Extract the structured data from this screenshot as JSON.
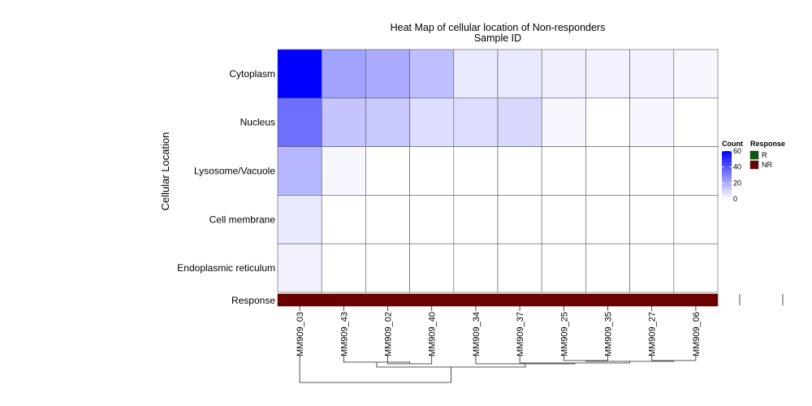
{
  "chart_data": {
    "type": "heatmap",
    "title": "Heat Map of cellular location of Non-responders",
    "subtitle": "Sample ID",
    "ylabel": "Cellular Location",
    "rows": [
      "Cytoplasm",
      "Nucleus",
      "Lysosome/Vacuole",
      "Cell membrane",
      "Endoplasmic reticulum"
    ],
    "columns": [
      "MM909_03",
      "MM909_43",
      "MM909_02",
      "MM909_40",
      "MM909_34",
      "MM909_37",
      "MM909_25",
      "MM909_35",
      "MM909_27",
      "MM909_06"
    ],
    "values": [
      [
        60,
        22,
        20,
        15,
        5,
        5,
        4,
        3,
        3,
        2
      ],
      [
        34,
        14,
        13,
        8,
        8,
        9,
        2,
        0,
        2,
        0
      ],
      [
        17,
        2,
        0,
        0,
        0,
        0,
        0,
        0,
        0,
        0
      ],
      [
        5,
        0,
        0,
        0,
        0,
        0,
        0,
        0,
        0,
        0
      ],
      [
        3,
        0,
        0,
        0,
        0,
        0,
        0,
        0,
        0,
        0
      ]
    ],
    "response_label": "Response",
    "response": [
      "NR",
      "NR",
      "NR",
      "NR",
      "NR",
      "NR",
      "NR",
      "NR",
      "NR",
      "NR"
    ],
    "color_scale": {
      "min": 0,
      "max": 60,
      "low_color": "#ffffff",
      "high_color": "#0000ff"
    },
    "legend_count": {
      "title": "Count",
      "ticks": [
        "60",
        "40",
        "20",
        "0"
      ],
      "tick_values": [
        60,
        40,
        20,
        0
      ]
    },
    "legend_response": {
      "title": "Response",
      "items": [
        {
          "label": "R",
          "color": "#0b5a0b"
        },
        {
          "label": "NR",
          "color": "#6b0000"
        }
      ]
    },
    "legend_placement": "right"
  }
}
